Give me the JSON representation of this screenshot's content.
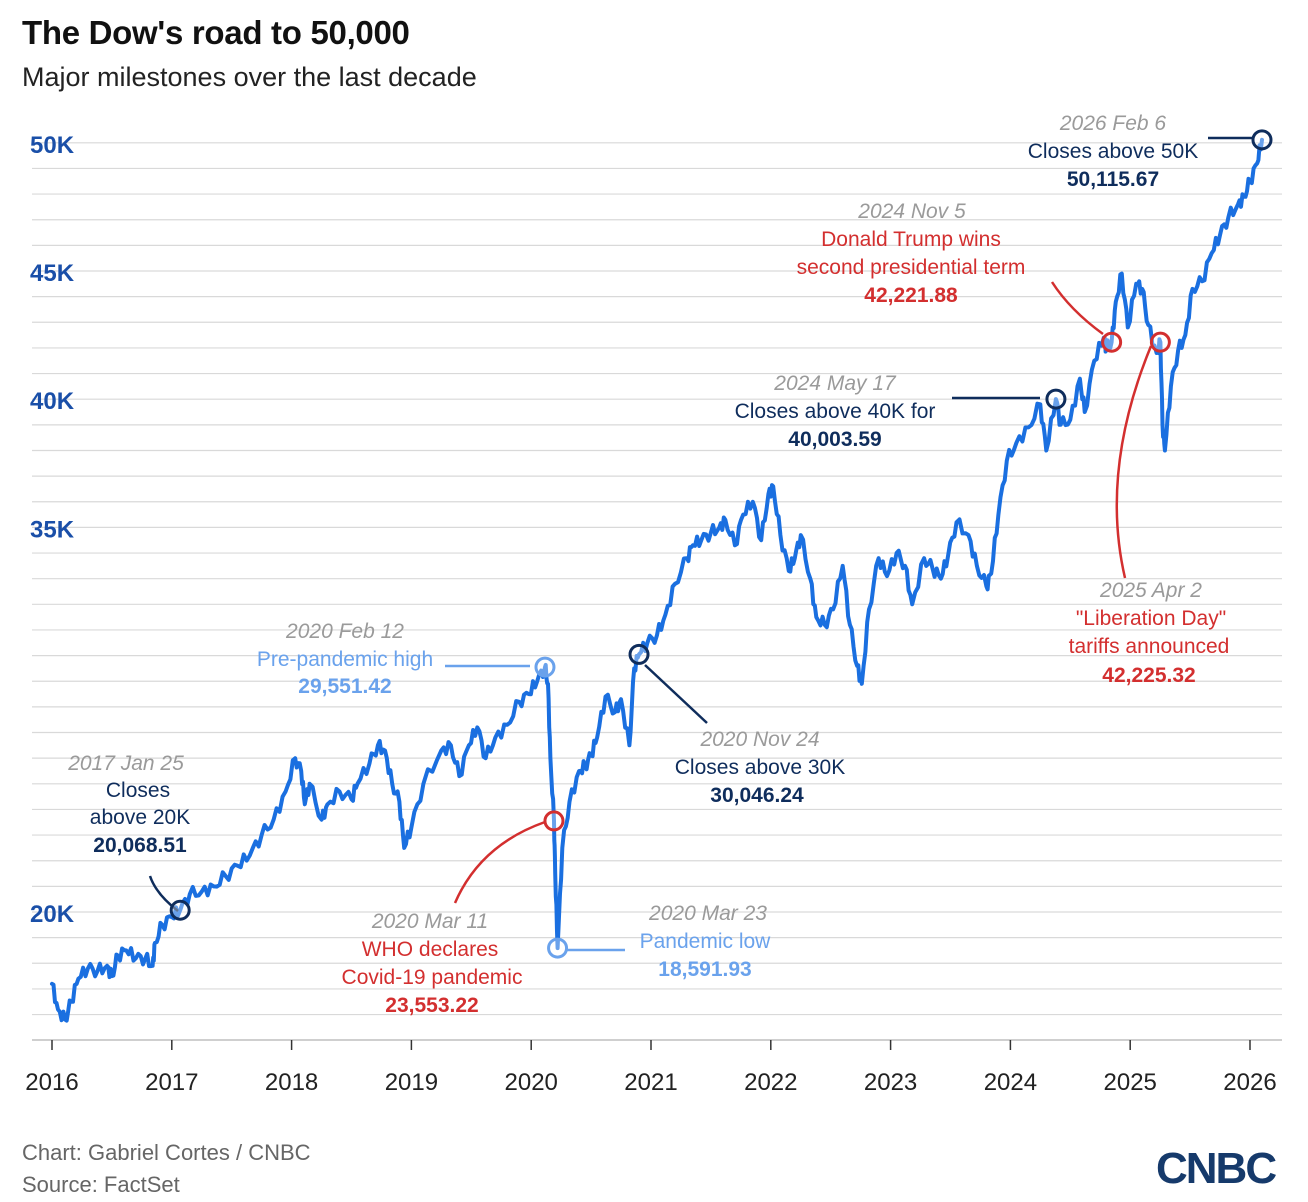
{
  "header": {
    "title": "The Dow's road to 50,000",
    "subtitle": "Major milestones over the last decade"
  },
  "footer": {
    "credit": "Chart: Gabriel Cortes / CNBC",
    "source": "Source: FactSet",
    "logo": "CNBC"
  },
  "colors": {
    "line": "#1a6fe0",
    "axis_labels": "#1a4fa8",
    "navy": "#0f2d5c",
    "red": "#d32f2f",
    "light_blue": "#6aa2ec",
    "date_gray": "#9a9a9a",
    "grid": "#d9d9d9"
  },
  "chart_data": {
    "type": "line",
    "title": "The Dow's road to 50,000",
    "subtitle": "Major milestones over the last decade",
    "xlabel": "",
    "ylabel": "",
    "x_ticks": [
      "2016",
      "2017",
      "2018",
      "2019",
      "2020",
      "2021",
      "2022",
      "2023",
      "2024",
      "2025",
      "2026"
    ],
    "y_ticks": [
      {
        "value": 20000,
        "label": "20K"
      },
      {
        "value": 35000,
        "label": "35K"
      },
      {
        "value": 40000,
        "label": "40K"
      },
      {
        "value": 45000,
        "label": "45K"
      },
      {
        "value": 50000,
        "label": "50K"
      }
    ],
    "ylim": [
      15000,
      50000
    ],
    "xlim": [
      2016.0,
      2026.2
    ],
    "grid": true,
    "series": [
      {
        "name": "",
        "points": [
          [
            2016.0,
            17200
          ],
          [
            2016.05,
            16200
          ],
          [
            2016.11,
            15800
          ],
          [
            2016.16,
            16500
          ],
          [
            2016.22,
            17400
          ],
          [
            2016.3,
            17800
          ],
          [
            2016.38,
            17700
          ],
          [
            2016.46,
            17900
          ],
          [
            2016.5,
            17500
          ],
          [
            2016.55,
            18300
          ],
          [
            2016.62,
            18500
          ],
          [
            2016.7,
            18200
          ],
          [
            2016.78,
            18200
          ],
          [
            2016.84,
            17900
          ],
          [
            2016.86,
            18800
          ],
          [
            2016.92,
            19500
          ],
          [
            2017.0,
            19800
          ],
          [
            2017.07,
            20068.51
          ],
          [
            2017.15,
            20700
          ],
          [
            2017.25,
            20800
          ],
          [
            2017.35,
            21000
          ],
          [
            2017.45,
            21400
          ],
          [
            2017.55,
            21800
          ],
          [
            2017.65,
            22200
          ],
          [
            2017.75,
            23000
          ],
          [
            2017.85,
            23600
          ],
          [
            2017.95,
            24700
          ],
          [
            2018.03,
            26000
          ],
          [
            2018.08,
            25500
          ],
          [
            2018.11,
            24200
          ],
          [
            2018.15,
            25000
          ],
          [
            2018.25,
            23600
          ],
          [
            2018.3,
            24200
          ],
          [
            2018.4,
            24700
          ],
          [
            2018.5,
            24400
          ],
          [
            2018.55,
            25000
          ],
          [
            2018.65,
            25800
          ],
          [
            2018.72,
            26500
          ],
          [
            2018.78,
            26300
          ],
          [
            2018.84,
            25000
          ],
          [
            2018.9,
            24300
          ],
          [
            2018.94,
            22500
          ],
          [
            2019.0,
            23300
          ],
          [
            2019.1,
            25000
          ],
          [
            2019.25,
            26300
          ],
          [
            2019.33,
            26500
          ],
          [
            2019.4,
            25300
          ],
          [
            2019.48,
            26500
          ],
          [
            2019.55,
            27200
          ],
          [
            2019.62,
            26000
          ],
          [
            2019.7,
            26800
          ],
          [
            2019.8,
            27300
          ],
          [
            2019.9,
            28200
          ],
          [
            2019.98,
            28500
          ],
          [
            2020.05,
            29000
          ],
          [
            2020.115,
            29551.42
          ],
          [
            2020.14,
            28900
          ],
          [
            2020.16,
            26000
          ],
          [
            2020.19,
            23553.22
          ],
          [
            2020.2,
            21500
          ],
          [
            2020.22,
            18591.93
          ],
          [
            2020.26,
            22500
          ],
          [
            2020.32,
            24300
          ],
          [
            2020.4,
            25500
          ],
          [
            2020.45,
            25700
          ],
          [
            2020.5,
            26100
          ],
          [
            2020.55,
            26800
          ],
          [
            2020.62,
            28400
          ],
          [
            2020.7,
            27800
          ],
          [
            2020.75,
            28300
          ],
          [
            2020.82,
            26500
          ],
          [
            2020.86,
            29500
          ],
          [
            2020.9,
            30046.24
          ],
          [
            2020.97,
            30500
          ],
          [
            2021.05,
            30800
          ],
          [
            2021.12,
            31600
          ],
          [
            2021.2,
            32800
          ],
          [
            2021.3,
            33800
          ],
          [
            2021.35,
            34300
          ],
          [
            2021.42,
            34500
          ],
          [
            2021.5,
            34800
          ],
          [
            2021.57,
            35000
          ],
          [
            2021.62,
            35300
          ],
          [
            2021.7,
            34300
          ],
          [
            2021.77,
            35500
          ],
          [
            2021.85,
            36000
          ],
          [
            2021.92,
            34500
          ],
          [
            2021.98,
            36300
          ],
          [
            2022.02,
            36600
          ],
          [
            2022.08,
            34700
          ],
          [
            2022.15,
            33300
          ],
          [
            2022.2,
            33800
          ],
          [
            2022.25,
            34700
          ],
          [
            2022.33,
            33000
          ],
          [
            2022.38,
            31500
          ],
          [
            2022.45,
            31200
          ],
          [
            2022.52,
            31800
          ],
          [
            2022.6,
            33500
          ],
          [
            2022.66,
            31200
          ],
          [
            2022.72,
            29600
          ],
          [
            2022.76,
            28900
          ],
          [
            2022.82,
            31800
          ],
          [
            2022.9,
            33800
          ],
          [
            2022.97,
            33100
          ],
          [
            2023.05,
            34000
          ],
          [
            2023.12,
            33500
          ],
          [
            2023.18,
            32000
          ],
          [
            2023.28,
            33800
          ],
          [
            2023.35,
            33400
          ],
          [
            2023.42,
            33000
          ],
          [
            2023.48,
            33900
          ],
          [
            2023.55,
            35200
          ],
          [
            2023.65,
            34700
          ],
          [
            2023.72,
            33500
          ],
          [
            2023.8,
            32700
          ],
          [
            2023.84,
            33200
          ],
          [
            2023.9,
            35500
          ],
          [
            2023.97,
            37600
          ],
          [
            2024.05,
            38300
          ],
          [
            2024.15,
            38900
          ],
          [
            2024.25,
            39800
          ],
          [
            2024.3,
            38000
          ],
          [
            2024.38,
            40003.59
          ],
          [
            2024.42,
            39000
          ],
          [
            2024.5,
            39200
          ],
          [
            2024.58,
            40800
          ],
          [
            2024.62,
            39500
          ],
          [
            2024.7,
            41500
          ],
          [
            2024.78,
            42400
          ],
          [
            2024.8,
            42000
          ],
          [
            2024.845,
            42221.88
          ],
          [
            2024.88,
            43800
          ],
          [
            2024.93,
            44900
          ],
          [
            2024.98,
            42800
          ],
          [
            2025.05,
            44500
          ],
          [
            2025.1,
            44300
          ],
          [
            2025.15,
            42900
          ],
          [
            2025.22,
            41800
          ],
          [
            2025.252,
            42225.32
          ],
          [
            2025.27,
            39000
          ],
          [
            2025.29,
            38000
          ],
          [
            2025.34,
            40500
          ],
          [
            2025.4,
            41900
          ],
          [
            2025.46,
            42500
          ],
          [
            2025.52,
            44300
          ],
          [
            2025.6,
            44600
          ],
          [
            2025.68,
            45700
          ],
          [
            2025.75,
            46400
          ],
          [
            2025.82,
            47100
          ],
          [
            2025.9,
            47600
          ],
          [
            2025.95,
            47900
          ],
          [
            2026.0,
            48500
          ],
          [
            2026.06,
            49200
          ],
          [
            2026.1,
            50115.67
          ]
        ]
      }
    ],
    "annotations": [
      {
        "date": "2017 Jan 25",
        "label": "Closes above 20K",
        "value": "20,068.51",
        "x": 2017.07,
        "y": 20068.51,
        "style": "navy"
      },
      {
        "date": "2020 Feb 12",
        "label": "Pre-pandemic high",
        "value": "29,551.42",
        "x": 2020.115,
        "y": 29551.42,
        "style": "light"
      },
      {
        "date": "2020 Mar 11",
        "label": "WHO declares Covid-19 pandemic",
        "value": "23,553.22",
        "x": 2020.19,
        "y": 23553.22,
        "style": "red"
      },
      {
        "date": "2020 Mar 23",
        "label": "Pandemic low",
        "value": "18,591.93",
        "x": 2020.22,
        "y": 18591.93,
        "style": "light"
      },
      {
        "date": "2020 Nov 24",
        "label": "Closes above 30K",
        "value": "30,046.24",
        "x": 2020.9,
        "y": 30046.24,
        "style": "navy"
      },
      {
        "date": "2024 May 17",
        "label": "Closes above 40K for",
        "value": "40,003.59",
        "x": 2024.38,
        "y": 40003.59,
        "style": "navy"
      },
      {
        "date": "2024 Nov 5",
        "label": "Donald Trump wins second presidential term",
        "value": "42,221.88",
        "x": 2024.845,
        "y": 42221.88,
        "style": "red"
      },
      {
        "date": "2025 Apr 2",
        "label": "\"Liberation Day\" tariffs announced",
        "value": "42,225.32",
        "x": 2025.252,
        "y": 42225.32,
        "style": "red"
      },
      {
        "date": "2026 Feb 6",
        "label": "Closes above 50K",
        "value": "50,115.67",
        "x": 2026.1,
        "y": 50115.67,
        "style": "navy"
      }
    ]
  }
}
